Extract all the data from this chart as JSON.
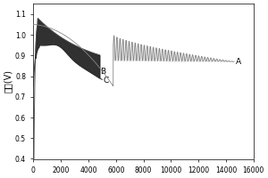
{
  "ylabel": "电压(V)",
  "xlim": [
    0,
    16000
  ],
  "ylim": [
    0.4,
    1.15
  ],
  "yticks": [
    0.4,
    0.5,
    0.6,
    0.7,
    0.8,
    0.9,
    1.0,
    1.1
  ],
  "xticks": [
    0,
    2000,
    4000,
    6000,
    8000,
    10000,
    12000,
    14000,
    16000
  ],
  "label_A": "A",
  "label_B": "B",
  "label_C": "C",
  "fill_dark": "#1a1a1a",
  "line_gray": "#888888",
  "line_dark": "#444444"
}
